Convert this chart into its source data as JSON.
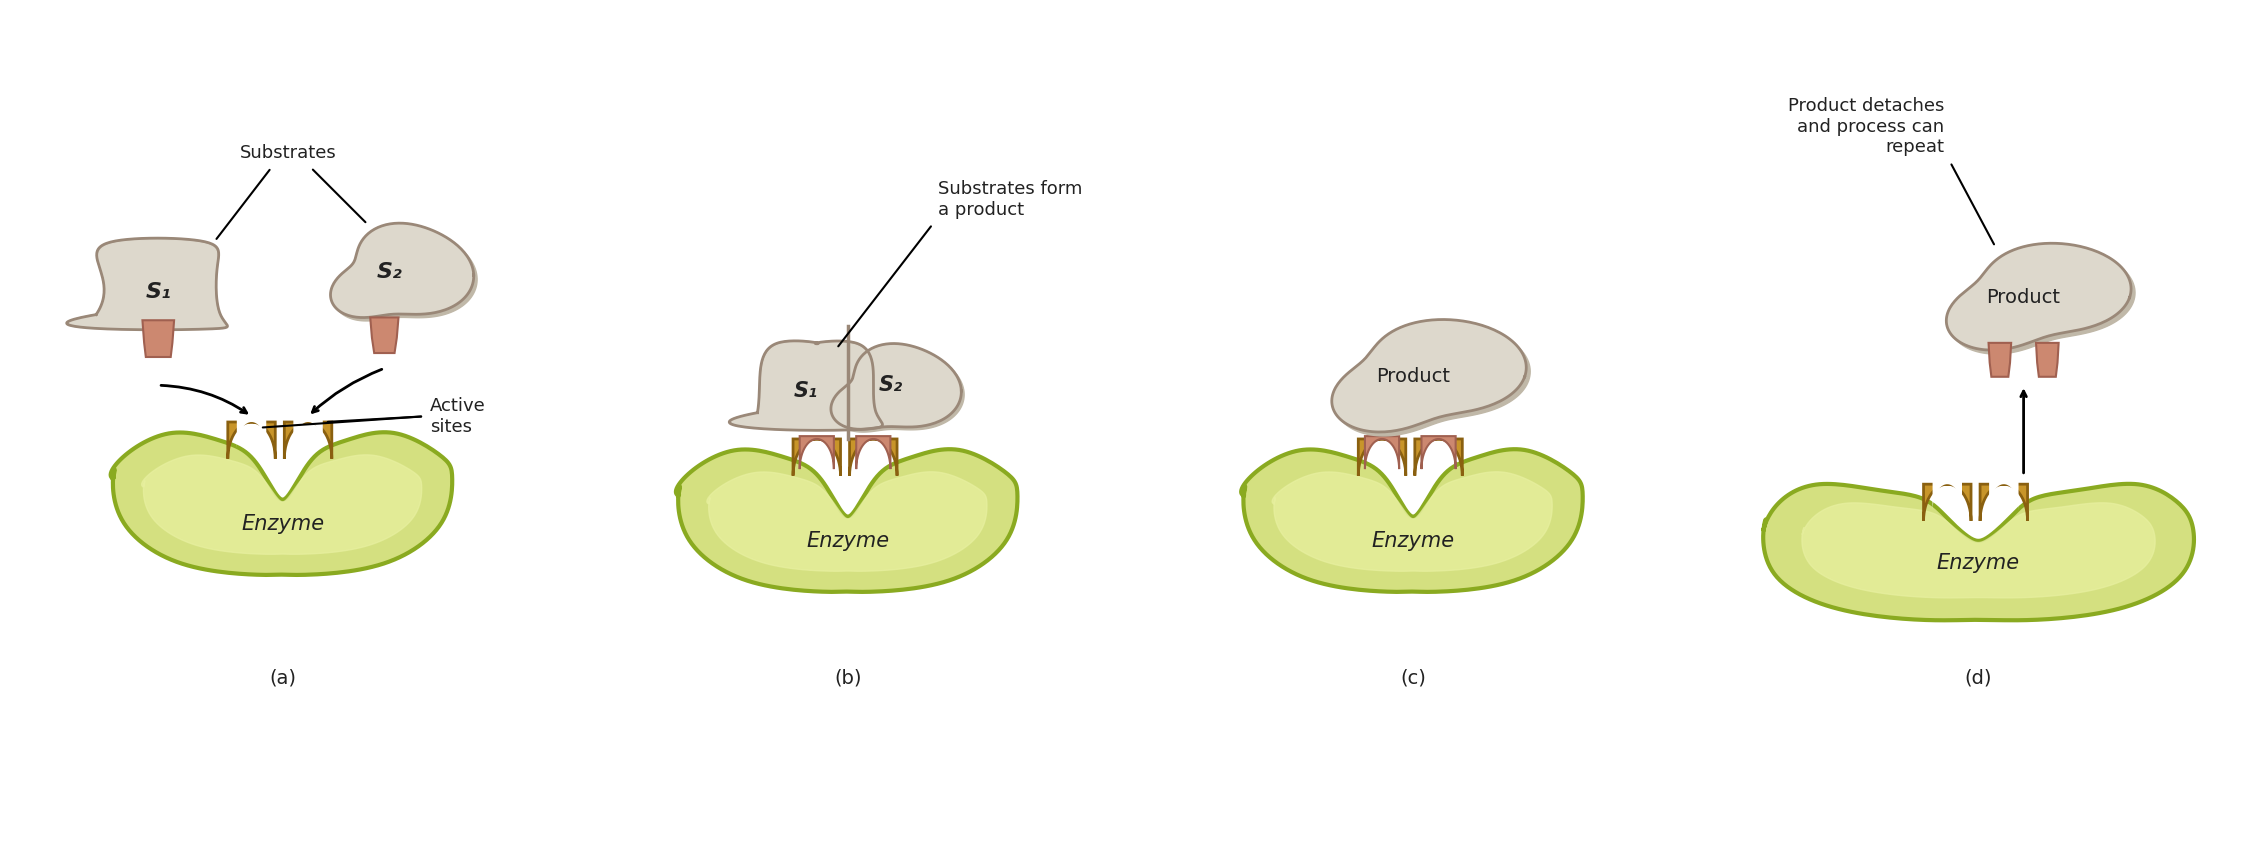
{
  "bg_color": "#ffffff",
  "enzyme_fill": "#d4e080",
  "enzyme_inner": "#e8f0a0",
  "enzyme_border": "#8aaa20",
  "active_fill": "#c8952a",
  "active_border": "#8a6010",
  "substrate_fill": "#ddd8cc",
  "substrate_border": "#9a8878",
  "substrate_shadow": "#c0b8a8",
  "plug_fill": "#cc8870",
  "plug_border": "#a06050",
  "text_color": "#222222",
  "panel_labels": [
    "(a)",
    "(b)",
    "(c)",
    "(d)"
  ],
  "enzyme_label": "Enzyme",
  "s1_label": "S₁",
  "s2_label": "S₂",
  "product_label": "Product",
  "substrates_text": "Substrates",
  "active_sites_text": "Active\nsites",
  "substrates_form_text": "Substrates form\na product",
  "product_detach_text": "Product detaches\nand process can\nrepeat"
}
